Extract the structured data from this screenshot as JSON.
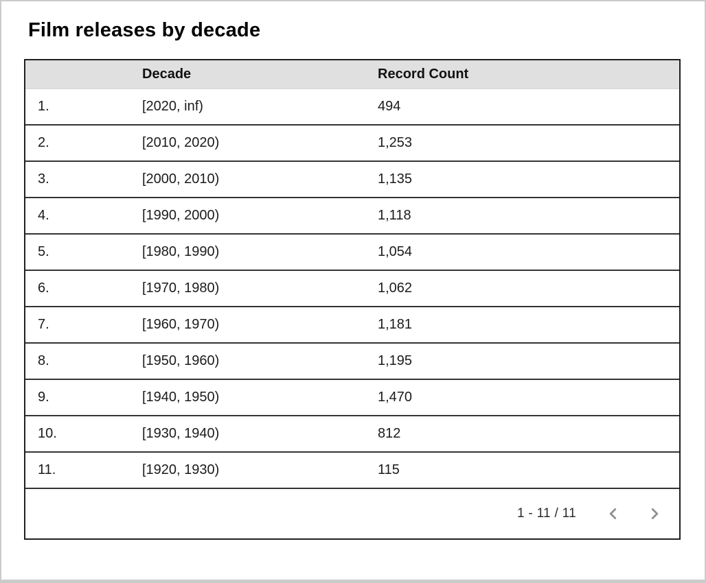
{
  "page": {
    "title": "Film releases by decade"
  },
  "table": {
    "columns": {
      "index": "",
      "decade": "Decade",
      "record_count": "Record Count"
    },
    "rows": [
      {
        "index": "1.",
        "decade": "[2020, inf)",
        "count": "494"
      },
      {
        "index": "2.",
        "decade": "[2010, 2020)",
        "count": "1,253"
      },
      {
        "index": "3.",
        "decade": "[2000, 2010)",
        "count": "1,135"
      },
      {
        "index": "4.",
        "decade": "[1990, 2000)",
        "count": "1,118"
      },
      {
        "index": "5.",
        "decade": "[1980, 1990)",
        "count": "1,054"
      },
      {
        "index": "6.",
        "decade": "[1970, 1980)",
        "count": "1,062"
      },
      {
        "index": "7.",
        "decade": "[1960, 1970)",
        "count": "1,181"
      },
      {
        "index": "8.",
        "decade": "[1950, 1960)",
        "count": "1,195"
      },
      {
        "index": "9.",
        "decade": "[1940, 1950)",
        "count": "1,470"
      },
      {
        "index": "10.",
        "decade": "[1930, 1940)",
        "count": "812"
      },
      {
        "index": "11.",
        "decade": "[1920, 1930)",
        "count": "115"
      }
    ]
  },
  "pagination": {
    "range": "1 - 11 / 11"
  },
  "colors": {
    "header_background": "#e0e0e0",
    "border": "#333333",
    "chevron": "#8f8f8f",
    "text": "#1b1b1b"
  },
  "chart_data": {
    "type": "table",
    "title": "Film releases by decade",
    "columns": [
      "Decade",
      "Record Count"
    ],
    "categories": [
      "[2020, inf)",
      "[2010, 2020)",
      "[2000, 2010)",
      "[1990, 2000)",
      "[1980, 1990)",
      "[1970, 1980)",
      "[1960, 1970)",
      "[1950, 1960)",
      "[1940, 1950)",
      "[1930, 1940)",
      "[1920, 1930)"
    ],
    "values": [
      494,
      1253,
      1135,
      1118,
      1054,
      1062,
      1181,
      1195,
      1470,
      812,
      115
    ],
    "layout": {
      "pagination": "1 - 11 / 11",
      "header_shaded": true
    }
  }
}
